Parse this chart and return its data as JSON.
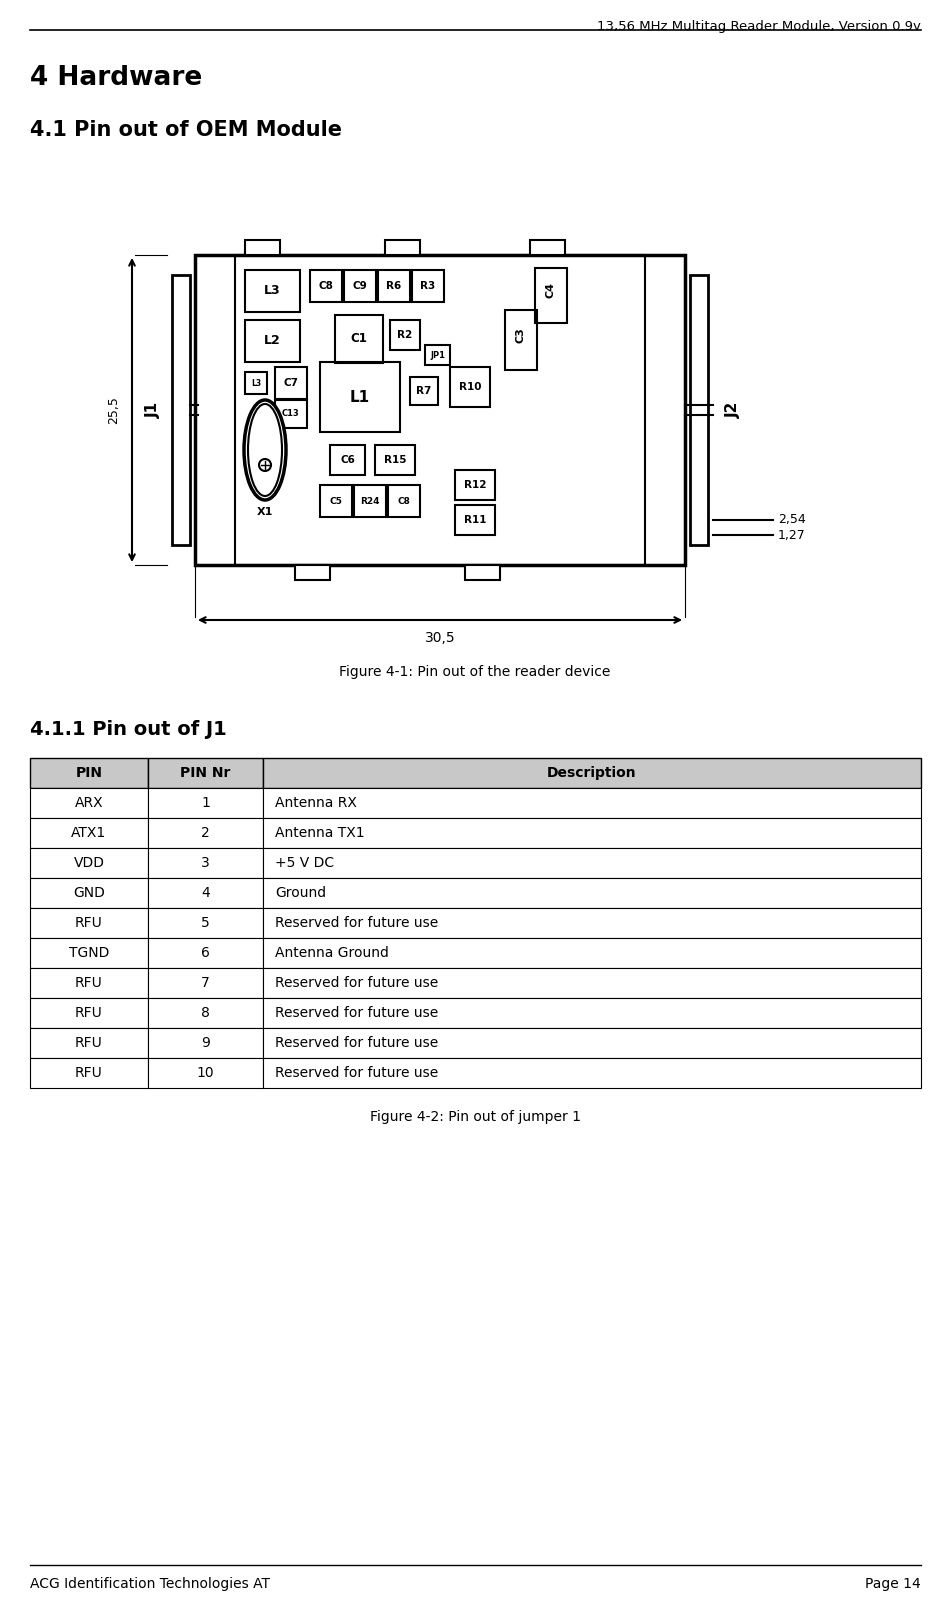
{
  "header_text": "13,56 MHz Multitag Reader Module, Version 0.9v",
  "title1": "4 Hardware",
  "title2": "4.1 Pin out of OEM Module",
  "title3": "4.1.1 Pin out of J1",
  "figure1_caption": "Figure 4-1: Pin out of the reader device",
  "figure2_caption": "Figure 4-2: Pin out of jumper 1",
  "footer_left": "ACG Identification Technologies AT",
  "footer_right": "Page 14",
  "table_headers": [
    "PIN",
    "PIN Nr",
    "Description"
  ],
  "table_rows": [
    [
      "ARX",
      "1",
      "Antenna RX"
    ],
    [
      "ATX1",
      "2",
      "Antenna TX1"
    ],
    [
      "VDD",
      "3",
      "+5 V DC"
    ],
    [
      "GND",
      "4",
      "Ground"
    ],
    [
      "RFU",
      "5",
      "Reserved for future use"
    ],
    [
      "TGND",
      "6",
      "Antenna Ground"
    ],
    [
      "RFU",
      "7",
      "Reserved for future use"
    ],
    [
      "RFU",
      "8",
      "Reserved for future use"
    ],
    [
      "RFU",
      "9",
      "Reserved for future use"
    ],
    [
      "RFU",
      "10",
      "Reserved for future use"
    ]
  ],
  "dim_255": "25,5",
  "dim_305": "30,5",
  "dim_254": "2,54",
  "dim_127": "1,27",
  "label_j1": "J1",
  "label_j2": "J2",
  "label_x1": "X1",
  "bg_color": "#ffffff",
  "line_color": "#000000"
}
